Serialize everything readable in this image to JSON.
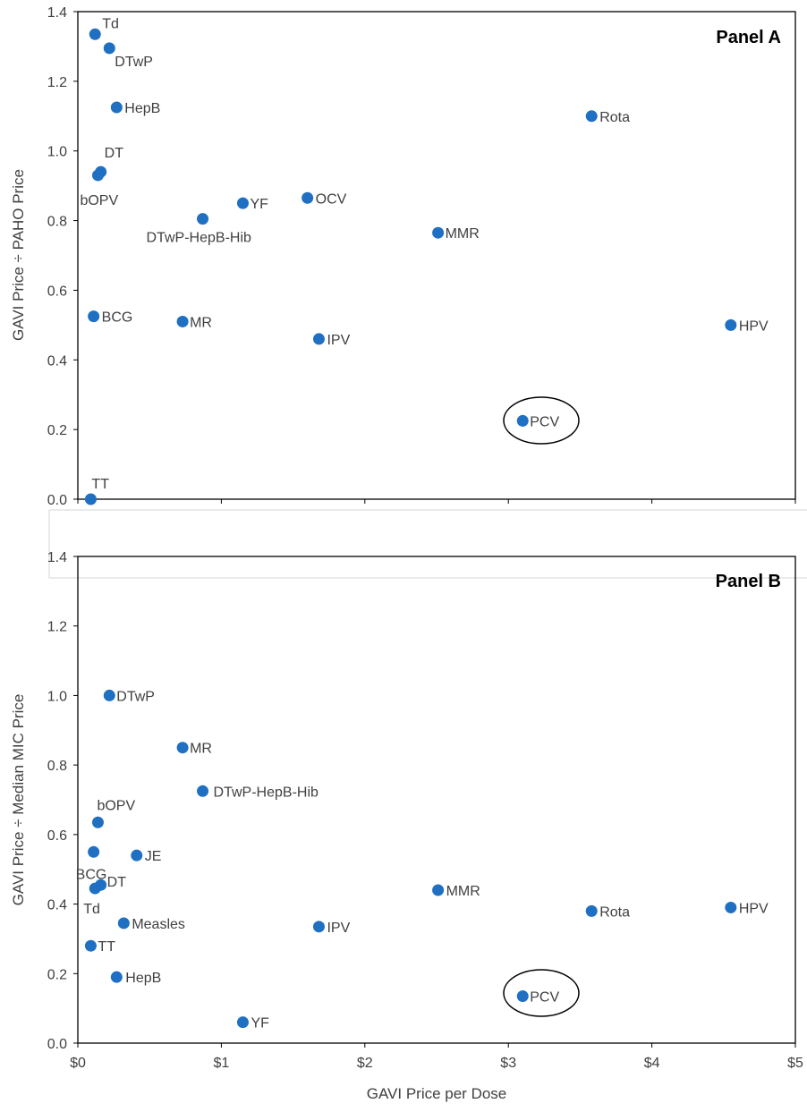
{
  "chart_data": [
    {
      "type": "scatter",
      "title": "Panel A",
      "ylabel": "GAVI Price ÷ PAHO Price",
      "xlabel": "",
      "xlim": [
        0,
        5
      ],
      "ylim": [
        0,
        1.4
      ],
      "x_ticks": [],
      "y_ticks": [
        "0.0",
        "0.2",
        "0.4",
        "0.6",
        "0.8",
        "1.0",
        "1.2",
        "1.4"
      ],
      "grid": false,
      "points": [
        {
          "label": "Td",
          "x": 0.12,
          "y": 1.335
        },
        {
          "label": "DTwP",
          "x": 0.22,
          "y": 1.295
        },
        {
          "label": "HepB",
          "x": 0.27,
          "y": 1.125
        },
        {
          "label": "DT",
          "x": 0.16,
          "y": 0.94
        },
        {
          "label": "bOPV",
          "x": 0.14,
          "y": 0.93
        },
        {
          "label": "DTwP-HepB-Hib",
          "x": 0.87,
          "y": 0.805
        },
        {
          "label": "YF",
          "x": 1.15,
          "y": 0.85
        },
        {
          "label": "OCV",
          "x": 1.6,
          "y": 0.865
        },
        {
          "label": "MMR",
          "x": 2.51,
          "y": 0.765
        },
        {
          "label": "Rota",
          "x": 3.58,
          "y": 1.1
        },
        {
          "label": "BCG",
          "x": 0.11,
          "y": 0.525
        },
        {
          "label": "MR",
          "x": 0.73,
          "y": 0.51
        },
        {
          "label": "IPV",
          "x": 1.68,
          "y": 0.46
        },
        {
          "label": "HPV",
          "x": 4.55,
          "y": 0.5
        },
        {
          "label": "PCV",
          "x": 3.1,
          "y": 0.225
        },
        {
          "label": "TT",
          "x": 0.09,
          "y": 0.0
        }
      ],
      "highlighted": "PCV"
    },
    {
      "type": "scatter",
      "title": "Panel B",
      "ylabel": "GAVI Price ÷ Median MIC Price",
      "xlabel": "GAVI Price per Dose",
      "xlim": [
        0,
        5
      ],
      "ylim": [
        0,
        1.4
      ],
      "x_ticks": [
        "$0",
        "$1",
        "$2",
        "$3",
        "$4",
        "$5"
      ],
      "y_ticks": [
        "0.0",
        "0.2",
        "0.4",
        "0.6",
        "0.8",
        "1.0",
        "1.2",
        "1.4"
      ],
      "grid": false,
      "points": [
        {
          "label": "DTwP",
          "x": 0.22,
          "y": 1.0
        },
        {
          "label": "MR",
          "x": 0.73,
          "y": 0.85
        },
        {
          "label": "DTwP-HepB-Hib",
          "x": 0.87,
          "y": 0.725
        },
        {
          "label": "bOPV",
          "x": 0.14,
          "y": 0.635
        },
        {
          "label": "BCG",
          "x": 0.11,
          "y": 0.55
        },
        {
          "label": "JE",
          "x": 0.41,
          "y": 0.54
        },
        {
          "label": "DT",
          "x": 0.16,
          "y": 0.455
        },
        {
          "label": "Td",
          "x": 0.12,
          "y": 0.445
        },
        {
          "label": "Measles",
          "x": 0.32,
          "y": 0.345
        },
        {
          "label": "IPV",
          "x": 1.68,
          "y": 0.335
        },
        {
          "label": "MMR",
          "x": 2.51,
          "y": 0.44
        },
        {
          "label": "Rota",
          "x": 3.58,
          "y": 0.38
        },
        {
          "label": "HPV",
          "x": 4.55,
          "y": 0.39
        },
        {
          "label": "TT",
          "x": 0.09,
          "y": 0.28
        },
        {
          "label": "HepB",
          "x": 0.27,
          "y": 0.19
        },
        {
          "label": "PCV",
          "x": 3.1,
          "y": 0.135
        },
        {
          "label": "YF",
          "x": 1.15,
          "y": 0.06
        }
      ],
      "highlighted": "PCV"
    }
  ],
  "colors": {
    "marker": "#1f6fc2",
    "text": "#404040",
    "axis": "#000000"
  }
}
